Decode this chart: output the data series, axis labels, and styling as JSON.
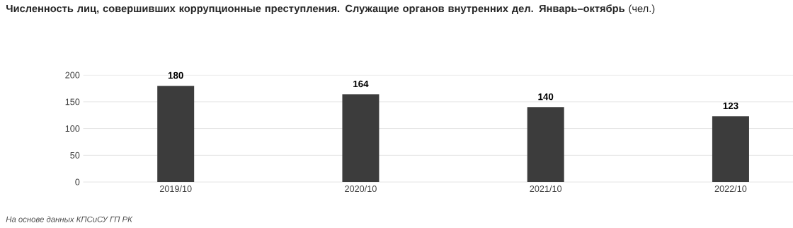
{
  "chart_data": {
    "type": "bar",
    "title": "**Численность лиц, совершивших коррупционные преступления. Служащие органов внутренних дел. Январь–октябрь** (чел.)",
    "categories": [
      "2019/10",
      "2020/10",
      "2021/10",
      "2022/10"
    ],
    "values": [
      180,
      164,
      140,
      123
    ],
    "color": "#3c3c3c",
    "ylim": [
      0,
      200
    ],
    "yticks": [
      0,
      50,
      100,
      150,
      200
    ],
    "grid": "y",
    "data_labels": true,
    "annotations": [
      "На основе данных КПСиСУ ГП РК"
    ]
  }
}
